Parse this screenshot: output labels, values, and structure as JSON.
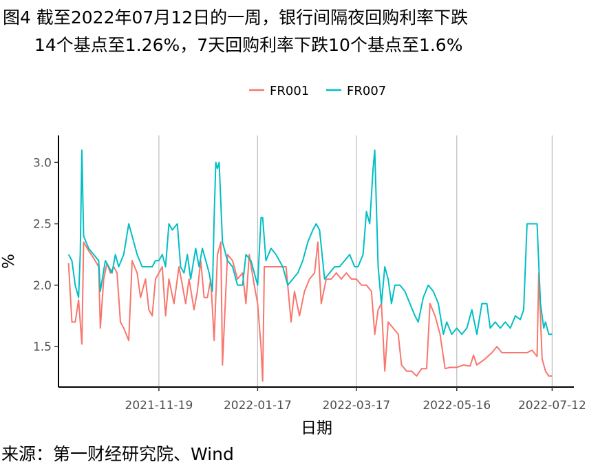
{
  "title_line1": "图4  截至2022年07月12日的一周，银行间隔夜回购利率下跌",
  "title_line2": "14个基点至1.26%，7天回购利率下跌10个基点至1.6%",
  "source": "来源：第一财经研究院、Wind",
  "chart_data": {
    "type": "line",
    "xlabel": "日期",
    "ylabel": "%",
    "x_ticks": [
      "2021-11-19",
      "2022-01-17",
      "2022-03-17",
      "2022-05-16",
      "2022-07-12"
    ],
    "y_ticks": [
      "1.5",
      "2.0",
      "2.5",
      "3.0"
    ],
    "ylim": [
      1.17,
      3.22
    ],
    "legend_position": "top",
    "grid": "vertical major lines",
    "colors": {
      "FR001": "#F8766D",
      "FR007": "#00BFC4"
    },
    "series": [
      {
        "name": "FR001",
        "values": [
          [
            "2021-09-26",
            2.18
          ],
          [
            "2021-09-28",
            1.7
          ],
          [
            "2021-09-30",
            1.7
          ],
          [
            "2021-10-02",
            1.88
          ],
          [
            "2021-10-04",
            1.52
          ],
          [
            "2021-10-05",
            2.35
          ],
          [
            "2021-10-08",
            2.28
          ],
          [
            "2021-10-11",
            2.22
          ],
          [
            "2021-10-14",
            2.15
          ],
          [
            "2021-10-15",
            1.65
          ],
          [
            "2021-10-17",
            2.05
          ],
          [
            "2021-10-19",
            2.18
          ],
          [
            "2021-10-21",
            2.1
          ],
          [
            "2021-10-23",
            2.15
          ],
          [
            "2021-10-25",
            2.1
          ],
          [
            "2021-10-27",
            1.7
          ],
          [
            "2021-10-29",
            1.65
          ],
          [
            "2021-11-01",
            1.55
          ],
          [
            "2021-11-03",
            2.2
          ],
          [
            "2021-11-06",
            2.1
          ],
          [
            "2021-11-08",
            1.9
          ],
          [
            "2021-11-11",
            2.05
          ],
          [
            "2021-11-13",
            1.8
          ],
          [
            "2021-11-15",
            1.75
          ],
          [
            "2021-11-17",
            2.05
          ],
          [
            "2021-11-19",
            2.1
          ],
          [
            "2021-11-21",
            2.15
          ],
          [
            "2021-11-23",
            1.75
          ],
          [
            "2021-11-25",
            2.05
          ],
          [
            "2021-11-28",
            1.85
          ],
          [
            "2021-12-01",
            2.15
          ],
          [
            "2021-12-03",
            2.0
          ],
          [
            "2021-12-05",
            1.85
          ],
          [
            "2021-12-07",
            2.05
          ],
          [
            "2021-12-10",
            1.8
          ],
          [
            "2021-12-12",
            1.95
          ],
          [
            "2021-12-14",
            2.2
          ],
          [
            "2021-12-16",
            1.9
          ],
          [
            "2021-12-18",
            1.9
          ],
          [
            "2021-12-20",
            2.05
          ],
          [
            "2021-12-22",
            1.55
          ],
          [
            "2021-12-24",
            2.25
          ],
          [
            "2021-12-26",
            2.35
          ],
          [
            "2021-12-27",
            1.35
          ],
          [
            "2021-12-30",
            2.25
          ],
          [
            "2022-01-02",
            2.2
          ],
          [
            "2022-01-05",
            2.05
          ],
          [
            "2022-01-08",
            2.1
          ],
          [
            "2022-01-10",
            1.85
          ],
          [
            "2022-01-12",
            2.25
          ],
          [
            "2022-01-15",
            2.0
          ],
          [
            "2022-01-17",
            1.85
          ],
          [
            "2022-01-19",
            1.5
          ],
          [
            "2022-01-20",
            1.22
          ],
          [
            "2022-01-21",
            2.15
          ],
          [
            "2022-01-24",
            2.15
          ],
          [
            "2022-01-26",
            2.15
          ],
          [
            "2022-01-28",
            2.15
          ],
          [
            "2022-01-31",
            2.15
          ],
          [
            "2022-02-03",
            2.15
          ],
          [
            "2022-02-06",
            1.7
          ],
          [
            "2022-02-08",
            1.95
          ],
          [
            "2022-02-11",
            1.75
          ],
          [
            "2022-02-14",
            1.95
          ],
          [
            "2022-02-17",
            2.05
          ],
          [
            "2022-02-20",
            2.1
          ],
          [
            "2022-02-22",
            2.35
          ],
          [
            "2022-02-24",
            1.85
          ],
          [
            "2022-02-27",
            2.05
          ],
          [
            "2022-03-02",
            2.05
          ],
          [
            "2022-03-05",
            2.1
          ],
          [
            "2022-03-08",
            2.05
          ],
          [
            "2022-03-11",
            2.1
          ],
          [
            "2022-03-14",
            2.05
          ],
          [
            "2022-03-17",
            2.05
          ],
          [
            "2022-03-20",
            2.0
          ],
          [
            "2022-03-23",
            2.0
          ],
          [
            "2022-03-26",
            1.95
          ],
          [
            "2022-03-28",
            1.6
          ],
          [
            "2022-03-30",
            1.8
          ],
          [
            "2022-04-01",
            1.85
          ],
          [
            "2022-04-03",
            1.3
          ],
          [
            "2022-04-05",
            1.7
          ],
          [
            "2022-04-08",
            1.65
          ],
          [
            "2022-04-11",
            1.6
          ],
          [
            "2022-04-13",
            1.35
          ],
          [
            "2022-04-16",
            1.3
          ],
          [
            "2022-04-19",
            1.3
          ],
          [
            "2022-04-22",
            1.26
          ],
          [
            "2022-04-25",
            1.32
          ],
          [
            "2022-04-28",
            1.32
          ],
          [
            "2022-04-30",
            1.85
          ],
          [
            "2022-05-03",
            1.75
          ],
          [
            "2022-05-06",
            1.6
          ],
          [
            "2022-05-09",
            1.32
          ],
          [
            "2022-05-12",
            1.33
          ],
          [
            "2022-05-16",
            1.33
          ],
          [
            "2022-05-20",
            1.35
          ],
          [
            "2022-05-24",
            1.34
          ],
          [
            "2022-05-26",
            1.43
          ],
          [
            "2022-05-28",
            1.35
          ],
          [
            "2022-06-02",
            1.4
          ],
          [
            "2022-06-06",
            1.45
          ],
          [
            "2022-06-09",
            1.5
          ],
          [
            "2022-06-12",
            1.45
          ],
          [
            "2022-06-17",
            1.45
          ],
          [
            "2022-06-22",
            1.45
          ],
          [
            "2022-06-27",
            1.45
          ],
          [
            "2022-06-30",
            1.47
          ],
          [
            "2022-07-03",
            1.42
          ],
          [
            "2022-07-04",
            2.1
          ],
          [
            "2022-07-06",
            1.4
          ],
          [
            "2022-07-08",
            1.3
          ],
          [
            "2022-07-10",
            1.26
          ],
          [
            "2022-07-12",
            1.26
          ]
        ]
      },
      {
        "name": "FR007",
        "values": [
          [
            "2021-09-26",
            2.25
          ],
          [
            "2021-09-28",
            2.2
          ],
          [
            "2021-09-30",
            2.0
          ],
          [
            "2021-10-02",
            1.9
          ],
          [
            "2021-10-03",
            2.25
          ],
          [
            "2021-10-04",
            3.1
          ],
          [
            "2021-10-05",
            2.4
          ],
          [
            "2021-10-08",
            2.3
          ],
          [
            "2021-10-11",
            2.25
          ],
          [
            "2021-10-14",
            2.2
          ],
          [
            "2021-10-15",
            1.95
          ],
          [
            "2021-10-18",
            2.2
          ],
          [
            "2021-10-20",
            2.15
          ],
          [
            "2021-10-22",
            2.1
          ],
          [
            "2021-10-24",
            2.25
          ],
          [
            "2021-10-26",
            2.15
          ],
          [
            "2021-10-29",
            2.25
          ],
          [
            "2021-11-01",
            2.5
          ],
          [
            "2021-11-03",
            2.4
          ],
          [
            "2021-11-06",
            2.25
          ],
          [
            "2021-11-09",
            2.15
          ],
          [
            "2021-11-12",
            2.15
          ],
          [
            "2021-11-15",
            2.15
          ],
          [
            "2021-11-17",
            2.2
          ],
          [
            "2021-11-19",
            2.2
          ],
          [
            "2021-11-21",
            2.25
          ],
          [
            "2021-11-23",
            2.15
          ],
          [
            "2021-11-25",
            2.5
          ],
          [
            "2021-11-27",
            2.45
          ],
          [
            "2021-11-30",
            2.5
          ],
          [
            "2021-12-02",
            2.15
          ],
          [
            "2021-12-04",
            2.1
          ],
          [
            "2021-12-06",
            2.25
          ],
          [
            "2021-12-08",
            2.05
          ],
          [
            "2021-12-11",
            2.3
          ],
          [
            "2021-12-13",
            2.15
          ],
          [
            "2021-12-15",
            2.3
          ],
          [
            "2021-12-17",
            2.2
          ],
          [
            "2021-12-19",
            2.1
          ],
          [
            "2021-12-21",
            1.95
          ],
          [
            "2021-12-22",
            2.55
          ],
          [
            "2021-12-23",
            3.0
          ],
          [
            "2021-12-24",
            2.95
          ],
          [
            "2021-12-25",
            3.0
          ],
          [
            "2021-12-27",
            2.35
          ],
          [
            "2021-12-30",
            2.2
          ],
          [
            "2022-01-02",
            2.15
          ],
          [
            "2022-01-05",
            2.0
          ],
          [
            "2022-01-08",
            2.0
          ],
          [
            "2022-01-10",
            2.25
          ],
          [
            "2022-01-13",
            2.2
          ],
          [
            "2022-01-16",
            2.05
          ],
          [
            "2022-01-17",
            2.0
          ],
          [
            "2022-01-19",
            2.55
          ],
          [
            "2022-01-20",
            2.55
          ],
          [
            "2022-01-22",
            2.2
          ],
          [
            "2022-01-25",
            2.3
          ],
          [
            "2022-01-28",
            2.25
          ],
          [
            "2022-02-01",
            2.15
          ],
          [
            "2022-02-04",
            2.0
          ],
          [
            "2022-02-07",
            2.05
          ],
          [
            "2022-02-10",
            2.1
          ],
          [
            "2022-02-13",
            2.2
          ],
          [
            "2022-02-16",
            2.35
          ],
          [
            "2022-02-19",
            2.45
          ],
          [
            "2022-02-21",
            2.5
          ],
          [
            "2022-02-23",
            2.45
          ],
          [
            "2022-02-26",
            2.05
          ],
          [
            "2022-03-01",
            2.1
          ],
          [
            "2022-03-04",
            2.15
          ],
          [
            "2022-03-07",
            2.15
          ],
          [
            "2022-03-10",
            2.2
          ],
          [
            "2022-03-13",
            2.25
          ],
          [
            "2022-03-16",
            2.15
          ],
          [
            "2022-03-18",
            2.15
          ],
          [
            "2022-03-21",
            2.25
          ],
          [
            "2022-03-23",
            2.6
          ],
          [
            "2022-03-25",
            2.5
          ],
          [
            "2022-03-27",
            2.95
          ],
          [
            "2022-03-28",
            3.1
          ],
          [
            "2022-03-30",
            2.15
          ],
          [
            "2022-04-01",
            1.85
          ],
          [
            "2022-04-03",
            2.15
          ],
          [
            "2022-04-05",
            2.05
          ],
          [
            "2022-04-07",
            1.85
          ],
          [
            "2022-04-09",
            2.0
          ],
          [
            "2022-04-12",
            2.0
          ],
          [
            "2022-04-15",
            1.95
          ],
          [
            "2022-04-18",
            1.85
          ],
          [
            "2022-04-21",
            1.75
          ],
          [
            "2022-04-23",
            1.7
          ],
          [
            "2022-04-26",
            1.9
          ],
          [
            "2022-04-29",
            2.0
          ],
          [
            "2022-05-02",
            1.95
          ],
          [
            "2022-05-05",
            1.85
          ],
          [
            "2022-05-08",
            1.6
          ],
          [
            "2022-05-10",
            1.7
          ],
          [
            "2022-05-13",
            1.6
          ],
          [
            "2022-05-16",
            1.65
          ],
          [
            "2022-05-19",
            1.6
          ],
          [
            "2022-05-22",
            1.65
          ],
          [
            "2022-05-25",
            1.8
          ],
          [
            "2022-05-28",
            1.6
          ],
          [
            "2022-05-31",
            1.85
          ],
          [
            "2022-06-03",
            1.85
          ],
          [
            "2022-06-05",
            1.65
          ],
          [
            "2022-06-08",
            1.7
          ],
          [
            "2022-06-11",
            1.65
          ],
          [
            "2022-06-14",
            1.7
          ],
          [
            "2022-06-17",
            1.65
          ],
          [
            "2022-06-20",
            1.75
          ],
          [
            "2022-06-23",
            1.72
          ],
          [
            "2022-06-25",
            1.8
          ],
          [
            "2022-06-27",
            2.5
          ],
          [
            "2022-06-29",
            2.5
          ],
          [
            "2022-07-01",
            2.5
          ],
          [
            "2022-07-03",
            2.5
          ],
          [
            "2022-07-05",
            1.85
          ],
          [
            "2022-07-07",
            1.65
          ],
          [
            "2022-07-08",
            1.7
          ],
          [
            "2022-07-10",
            1.6
          ],
          [
            "2022-07-12",
            1.6
          ]
        ]
      }
    ]
  }
}
